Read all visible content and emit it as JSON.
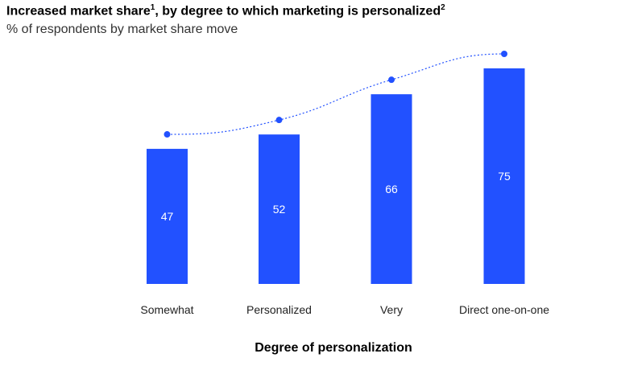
{
  "header": {
    "title": "Increased market share",
    "title_note_1": "1",
    "title_rest": ", by degree to which marketing is personalized",
    "title_note_2": "2",
    "subtitle": "% of respondents by market share move"
  },
  "colors": {
    "bar": "#2251ff",
    "bar_label": "#ffffff",
    "trend": "#2251ff"
  },
  "chart_data": {
    "type": "bar",
    "title": "Increased market share, by degree to which marketing is personalized",
    "subtitle": "% of respondents by market share move",
    "xlabel": "Degree of personalization",
    "ylabel": "",
    "categories": [
      "Somewhat",
      "Personalized",
      "Very",
      "Direct one-on-one"
    ],
    "values": [
      47,
      52,
      66,
      75
    ],
    "value_labels": [
      "47",
      "52",
      "66",
      "75"
    ],
    "ylim": [
      0,
      75
    ],
    "grid": false,
    "legend": "none",
    "overlay": {
      "type": "line",
      "style": "dotted",
      "markers": true,
      "values": [
        47,
        52,
        66,
        75
      ]
    }
  }
}
